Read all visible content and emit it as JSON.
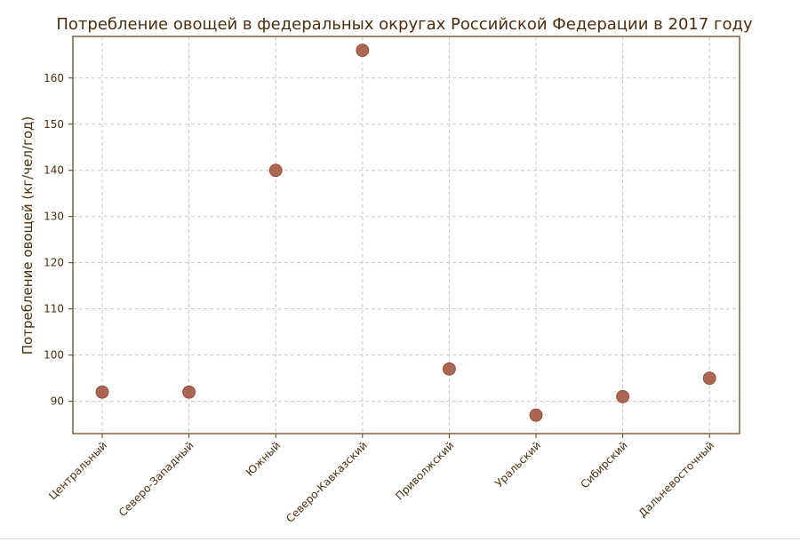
{
  "chart_data": {
    "type": "scatter",
    "title": "Потребление овощей в федеральных округах Российской Федерации в 2017 году",
    "xlabel": "",
    "ylabel": "Потребление овощей (кг/чел/год)",
    "categories": [
      "Центральный",
      "Северо-Западный",
      "Южный",
      "Северо-Кавказский",
      "Приволжский",
      "Уральский",
      "Сибирский",
      "Дальневосточный"
    ],
    "values": [
      92,
      92,
      140,
      166,
      97,
      87,
      91,
      95
    ],
    "ylim": [
      83,
      169
    ],
    "yticks": [
      "90",
      "100",
      "110",
      "120",
      "130",
      "140",
      "150",
      "160"
    ],
    "grid": true,
    "marker_color": "#a0523a",
    "axis_color": "#5a3d17",
    "text_color": "#4a2e0e"
  }
}
